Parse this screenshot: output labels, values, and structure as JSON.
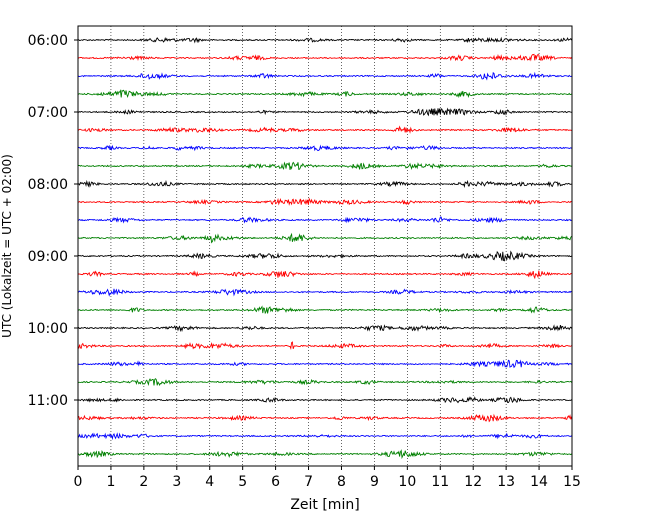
{
  "chart_data": {
    "type": "line",
    "title": "",
    "xlabel": "Zeit  [min]",
    "ylabel": "UTC (Lokalzeit = UTC + 02:00)",
    "xlim": [
      0,
      15
    ],
    "xticks": [
      "0",
      "1",
      "2",
      "3",
      "4",
      "5",
      "6",
      "7",
      "8",
      "9",
      "10",
      "11",
      "12",
      "13",
      "14",
      "15"
    ],
    "yticks": [
      "06:00",
      "07:00",
      "08:00",
      "09:00",
      "10:00",
      "11:00"
    ],
    "grid": "vertical dotted",
    "legend": "none",
    "trace_minutes": 15,
    "trace_start": "06:00",
    "trace_count": 24,
    "trace_colors": [
      "#000000",
      "#ff0000",
      "#0000ff",
      "#008000"
    ],
    "events": [
      {
        "trace_start": "10:15",
        "minute": 6.5,
        "amplitude": "large spike"
      },
      {
        "trace_start": "06:45",
        "minute": 11.7,
        "amplitude": "moderate burst"
      }
    ]
  }
}
